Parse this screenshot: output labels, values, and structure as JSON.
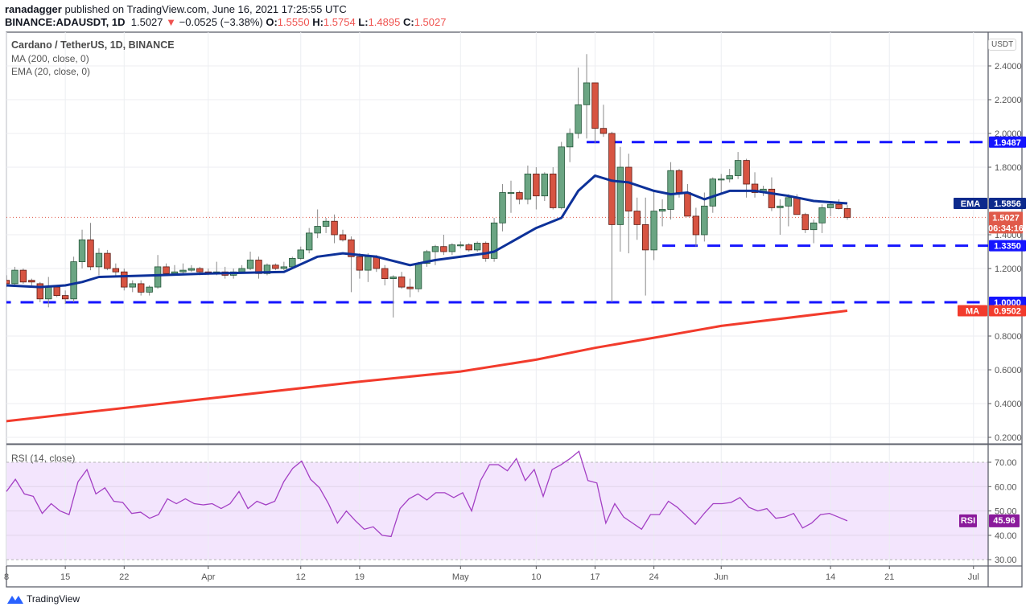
{
  "header": {
    "author": "ranadagger",
    "published_text": "published on TradingView.com, June 16, 2021 17:25:55 UTC",
    "symbol": "BINANCE:ADAUSDT, 1D",
    "last": "1.5027",
    "change": "−0.0525 (−3.38%)",
    "o_label": "O:",
    "o": "1.5550",
    "h_label": "H:",
    "h": "1.5754",
    "l_label": "L:",
    "l": "1.4895",
    "c_label": "C:",
    "c": "1.5027"
  },
  "legend": {
    "title": "Cardano / TetherUS, 1D, BINANCE",
    "ma": "MA (200, close, 0)",
    "ema": "EMA (20, close, 0)",
    "rsi": "RSI (14, close)"
  },
  "currency": "USDT",
  "footer": {
    "brand": "TradingView"
  },
  "colors": {
    "up": "#6ba583",
    "down": "#d75442",
    "ema": "#0d3199",
    "ma": "#f23b2c",
    "level": "#1515ff",
    "rsi": "#a33fc4",
    "rsi_band": "#f3e5fd"
  },
  "chart_data": {
    "type": "candlestick",
    "price_axis": {
      "ticks": [
        "0.2000",
        "0.4000",
        "0.6000",
        "0.8000",
        "1.2000",
        "1.4000",
        "1.8000",
        "2.0000",
        "2.2000",
        "2.4000"
      ],
      "range": [
        0.14,
        2.55
      ]
    },
    "time_axis": [
      {
        "label": "8",
        "date": "2021-03-08"
      },
      {
        "label": "15",
        "date": "2021-03-15"
      },
      {
        "label": "22",
        "date": "2021-03-22"
      },
      {
        "label": "Apr",
        "date": "2021-04-01"
      },
      {
        "label": "12",
        "date": "2021-04-12"
      },
      {
        "label": "19",
        "date": "2021-04-19"
      },
      {
        "label": "May",
        "date": "2021-05-01"
      },
      {
        "label": "10",
        "date": "2021-05-10"
      },
      {
        "label": "17",
        "date": "2021-05-17"
      },
      {
        "label": "24",
        "date": "2021-05-24"
      },
      {
        "label": "Jun",
        "date": "2021-06-01"
      },
      {
        "label": "14",
        "date": "2021-06-14"
      },
      {
        "label": "21",
        "date": "2021-06-21"
      },
      {
        "label": "Jul",
        "date": "2021-07-01"
      }
    ],
    "candles_columns": [
      "date",
      "open",
      "high",
      "low",
      "close"
    ],
    "candles": [
      [
        "2021-03-08",
        1.13,
        1.16,
        1.09,
        1.11
      ],
      [
        "2021-03-09",
        1.11,
        1.21,
        1.1,
        1.19
      ],
      [
        "2021-03-10",
        1.19,
        1.2,
        1.11,
        1.12
      ],
      [
        "2021-03-11",
        1.13,
        1.14,
        1.1,
        1.12
      ],
      [
        "2021-03-12",
        1.11,
        1.12,
        1.0,
        1.02
      ],
      [
        "2021-03-13",
        1.02,
        1.15,
        0.97,
        1.09
      ],
      [
        "2021-03-14",
        1.09,
        1.1,
        1.03,
        1.04
      ],
      [
        "2021-03-15",
        1.04,
        1.07,
        0.99,
        1.02
      ],
      [
        "2021-03-16",
        1.02,
        1.27,
        1.0,
        1.24
      ],
      [
        "2021-03-17",
        1.24,
        1.43,
        1.2,
        1.37
      ],
      [
        "2021-03-18",
        1.37,
        1.47,
        1.19,
        1.21
      ],
      [
        "2021-03-19",
        1.21,
        1.32,
        1.16,
        1.29
      ],
      [
        "2021-03-20",
        1.29,
        1.31,
        1.19,
        1.2
      ],
      [
        "2021-03-21",
        1.2,
        1.23,
        1.15,
        1.18
      ],
      [
        "2021-03-22",
        1.18,
        1.2,
        1.07,
        1.09
      ],
      [
        "2021-03-23",
        1.09,
        1.13,
        1.06,
        1.11
      ],
      [
        "2021-03-24",
        1.11,
        1.13,
        1.04,
        1.06
      ],
      [
        "2021-03-25",
        1.06,
        1.1,
        1.04,
        1.09
      ],
      [
        "2021-03-26",
        1.09,
        1.28,
        1.08,
        1.21
      ],
      [
        "2021-03-27",
        1.21,
        1.23,
        1.16,
        1.17
      ],
      [
        "2021-03-28",
        1.17,
        1.22,
        1.16,
        1.18
      ],
      [
        "2021-03-29",
        1.18,
        1.23,
        1.17,
        1.19
      ],
      [
        "2021-03-30",
        1.19,
        1.22,
        1.18,
        1.2
      ],
      [
        "2021-03-31",
        1.2,
        1.21,
        1.16,
        1.18
      ],
      [
        "2021-04-01",
        1.18,
        1.2,
        1.16,
        1.17
      ],
      [
        "2021-04-02",
        1.17,
        1.24,
        1.16,
        1.18
      ],
      [
        "2021-04-03",
        1.18,
        1.21,
        1.14,
        1.16
      ],
      [
        "2021-04-04",
        1.16,
        1.2,
        1.14,
        1.18
      ],
      [
        "2021-04-05",
        1.18,
        1.22,
        1.17,
        1.2
      ],
      [
        "2021-04-06",
        1.2,
        1.3,
        1.19,
        1.25
      ],
      [
        "2021-04-07",
        1.25,
        1.27,
        1.14,
        1.17
      ],
      [
        "2021-04-08",
        1.17,
        1.23,
        1.16,
        1.22
      ],
      [
        "2021-04-09",
        1.22,
        1.23,
        1.19,
        1.2
      ],
      [
        "2021-04-10",
        1.2,
        1.24,
        1.19,
        1.21
      ],
      [
        "2021-04-11",
        1.21,
        1.27,
        1.2,
        1.26
      ],
      [
        "2021-04-12",
        1.26,
        1.33,
        1.25,
        1.31
      ],
      [
        "2021-04-13",
        1.31,
        1.44,
        1.29,
        1.41
      ],
      [
        "2021-04-14",
        1.41,
        1.55,
        1.38,
        1.45
      ],
      [
        "2021-04-15",
        1.45,
        1.5,
        1.41,
        1.48
      ],
      [
        "2021-04-16",
        1.48,
        1.52,
        1.35,
        1.4
      ],
      [
        "2021-04-17",
        1.4,
        1.43,
        1.36,
        1.37
      ],
      [
        "2021-04-18",
        1.37,
        1.39,
        1.06,
        1.27
      ],
      [
        "2021-04-19",
        1.27,
        1.29,
        1.14,
        1.19
      ],
      [
        "2021-04-20",
        1.19,
        1.29,
        1.12,
        1.27
      ],
      [
        "2021-04-21",
        1.27,
        1.28,
        1.18,
        1.2
      ],
      [
        "2021-04-22",
        1.2,
        1.22,
        1.1,
        1.14
      ],
      [
        "2021-04-23",
        1.14,
        1.16,
        0.91,
        1.15
      ],
      [
        "2021-04-24",
        1.15,
        1.18,
        1.08,
        1.09
      ],
      [
        "2021-04-25",
        1.09,
        1.14,
        1.03,
        1.08
      ],
      [
        "2021-04-26",
        1.08,
        1.24,
        1.06,
        1.23
      ],
      [
        "2021-04-27",
        1.23,
        1.31,
        1.21,
        1.3
      ],
      [
        "2021-04-28",
        1.3,
        1.34,
        1.22,
        1.33
      ],
      [
        "2021-04-29",
        1.33,
        1.4,
        1.28,
        1.3
      ],
      [
        "2021-04-30",
        1.3,
        1.35,
        1.28,
        1.34
      ],
      [
        "2021-05-01",
        1.34,
        1.36,
        1.32,
        1.34
      ],
      [
        "2021-05-02",
        1.34,
        1.35,
        1.3,
        1.31
      ],
      [
        "2021-05-03",
        1.31,
        1.36,
        1.3,
        1.35
      ],
      [
        "2021-05-04",
        1.35,
        1.36,
        1.24,
        1.26
      ],
      [
        "2021-05-05",
        1.26,
        1.5,
        1.24,
        1.47
      ],
      [
        "2021-05-06",
        1.47,
        1.7,
        1.42,
        1.65
      ],
      [
        "2021-05-07",
        1.65,
        1.72,
        1.53,
        1.65
      ],
      [
        "2021-05-08",
        1.65,
        1.66,
        1.58,
        1.61
      ],
      [
        "2021-05-09",
        1.61,
        1.81,
        1.58,
        1.76
      ],
      [
        "2021-05-10",
        1.76,
        1.8,
        1.55,
        1.63
      ],
      [
        "2021-05-11",
        1.63,
        1.77,
        1.6,
        1.76
      ],
      [
        "2021-05-12",
        1.76,
        1.8,
        1.55,
        1.56
      ],
      [
        "2021-05-13",
        1.56,
        1.95,
        1.55,
        1.92
      ],
      [
        "2021-05-14",
        1.92,
        2.03,
        1.83,
        2.0
      ],
      [
        "2021-05-15",
        2.0,
        2.39,
        1.97,
        2.17
      ],
      [
        "2021-05-16",
        2.17,
        2.47,
        1.97,
        2.3
      ],
      [
        "2021-05-17",
        2.3,
        2.3,
        1.94,
        2.03
      ],
      [
        "2021-05-18",
        2.03,
        2.17,
        1.98,
        2.0
      ],
      [
        "2021-05-19",
        2.0,
        2.01,
        1.0,
        1.46
      ],
      [
        "2021-05-20",
        1.46,
        1.92,
        1.3,
        1.8
      ],
      [
        "2021-05-21",
        1.8,
        1.88,
        1.29,
        1.54
      ],
      [
        "2021-05-22",
        1.54,
        1.62,
        1.37,
        1.46
      ],
      [
        "2021-05-23",
        1.46,
        1.62,
        1.04,
        1.31
      ],
      [
        "2021-05-24",
        1.31,
        1.66,
        1.25,
        1.54
      ],
      [
        "2021-05-25",
        1.54,
        1.61,
        1.45,
        1.55
      ],
      [
        "2021-05-26",
        1.55,
        1.83,
        1.49,
        1.78
      ],
      [
        "2021-05-27",
        1.78,
        1.79,
        1.62,
        1.65
      ],
      [
        "2021-05-28",
        1.65,
        1.7,
        1.51,
        1.51
      ],
      [
        "2021-05-29",
        1.51,
        1.56,
        1.33,
        1.4
      ],
      [
        "2021-05-30",
        1.4,
        1.65,
        1.36,
        1.57
      ],
      [
        "2021-05-31",
        1.57,
        1.74,
        1.53,
        1.73
      ],
      [
        "2021-06-01",
        1.73,
        1.76,
        1.65,
        1.73
      ],
      [
        "2021-06-02",
        1.73,
        1.79,
        1.71,
        1.75
      ],
      [
        "2021-06-03",
        1.75,
        1.89,
        1.73,
        1.84
      ],
      [
        "2021-06-04",
        1.84,
        1.85,
        1.62,
        1.7
      ],
      [
        "2021-06-05",
        1.7,
        1.77,
        1.62,
        1.65
      ],
      [
        "2021-06-06",
        1.65,
        1.69,
        1.63,
        1.67
      ],
      [
        "2021-06-07",
        1.67,
        1.74,
        1.54,
        1.56
      ],
      [
        "2021-06-08",
        1.56,
        1.61,
        1.4,
        1.57
      ],
      [
        "2021-06-09",
        1.57,
        1.64,
        1.45,
        1.62
      ],
      [
        "2021-06-10",
        1.62,
        1.64,
        1.52,
        1.52
      ],
      [
        "2021-06-11",
        1.52,
        1.53,
        1.41,
        1.43
      ],
      [
        "2021-06-12",
        1.43,
        1.49,
        1.35,
        1.47
      ],
      [
        "2021-06-13",
        1.47,
        1.58,
        1.41,
        1.56
      ],
      [
        "2021-06-14",
        1.56,
        1.6,
        1.51,
        1.58
      ],
      [
        "2021-06-15",
        1.58,
        1.61,
        1.55,
        1.555
      ],
      [
        "2021-06-16",
        1.555,
        1.5754,
        1.4895,
        1.5027
      ]
    ],
    "ema20": [
      [
        "2021-03-08",
        1.1
      ],
      [
        "2021-03-12",
        1.09
      ],
      [
        "2021-03-15",
        1.1
      ],
      [
        "2021-03-17",
        1.12
      ],
      [
        "2021-03-19",
        1.15
      ],
      [
        "2021-03-26",
        1.16
      ],
      [
        "2021-04-01",
        1.17
      ],
      [
        "2021-04-10",
        1.18
      ],
      [
        "2021-04-14",
        1.27
      ],
      [
        "2021-04-17",
        1.29
      ],
      [
        "2021-04-21",
        1.27
      ],
      [
        "2021-04-25",
        1.22
      ],
      [
        "2021-04-28",
        1.25
      ],
      [
        "2021-05-04",
        1.29
      ],
      [
        "2021-05-05",
        1.3
      ],
      [
        "2021-05-10",
        1.44
      ],
      [
        "2021-05-13",
        1.5
      ],
      [
        "2021-05-15",
        1.66
      ],
      [
        "2021-05-17",
        1.75
      ],
      [
        "2021-05-19",
        1.72
      ],
      [
        "2021-05-21",
        1.71
      ],
      [
        "2021-05-24",
        1.66
      ],
      [
        "2021-05-26",
        1.64
      ],
      [
        "2021-05-28",
        1.65
      ],
      [
        "2021-05-30",
        1.61
      ],
      [
        "2021-06-02",
        1.66
      ],
      [
        "2021-06-05",
        1.66
      ],
      [
        "2021-06-09",
        1.63
      ],
      [
        "2021-06-12",
        1.6
      ],
      [
        "2021-06-16",
        1.5856
      ]
    ],
    "ma200": [
      [
        "2021-03-07",
        0.29
      ],
      [
        "2021-04-01",
        0.43
      ],
      [
        "2021-04-19",
        0.53
      ],
      [
        "2021-05-01",
        0.59
      ],
      [
        "2021-05-10",
        0.66
      ],
      [
        "2021-05-17",
        0.73
      ],
      [
        "2021-05-24",
        0.79
      ],
      [
        "2021-06-01",
        0.86
      ],
      [
        "2021-06-16",
        0.9502
      ]
    ],
    "levels": [
      {
        "value": "1.9487",
        "from": "2021-05-16"
      },
      {
        "value": "1.3350",
        "from": "2021-05-25"
      },
      {
        "value": "1.0000",
        "from": "2021-03-07"
      }
    ],
    "badges": {
      "ema_label": "EMA",
      "ema_value": "1.5856",
      "price": "1.5027",
      "countdown": "06:34:16",
      "ma_label": "MA",
      "ma_value": "0.9502"
    },
    "rsi": {
      "ticks": [
        "70.00",
        "60.00",
        "50.00",
        "40.00",
        "30.00"
      ],
      "upper": 70,
      "lower": 30,
      "badge_label": "RSI",
      "badge_value": "45.96",
      "values": [
        58,
        63,
        57,
        56,
        49,
        53,
        50,
        48.5,
        62,
        67,
        57,
        59.5,
        54,
        53.5,
        49,
        49.5,
        47,
        48.5,
        55,
        53,
        55,
        53,
        52.5,
        53,
        51,
        53,
        58,
        51,
        54,
        52.5,
        54,
        62,
        67.5,
        70.5,
        63,
        59.5,
        53,
        45,
        50,
        46,
        42.5,
        43.5,
        40,
        39.5,
        51,
        55,
        57,
        54.5,
        57.5,
        57.5,
        55.5,
        57.5,
        50,
        62.5,
        69,
        69,
        66.5,
        71.5,
        62.5,
        67,
        56,
        67,
        69,
        71.5,
        74.5,
        62.5,
        61.5,
        45,
        53,
        47.5,
        45,
        42.5,
        48.5,
        48.5,
        54,
        51.5,
        48,
        44.5,
        49,
        53,
        53,
        53.5,
        55.5,
        51.5,
        50,
        51,
        47,
        47.5,
        49,
        43,
        45,
        48.5,
        49,
        47.5,
        45.96
      ]
    }
  }
}
